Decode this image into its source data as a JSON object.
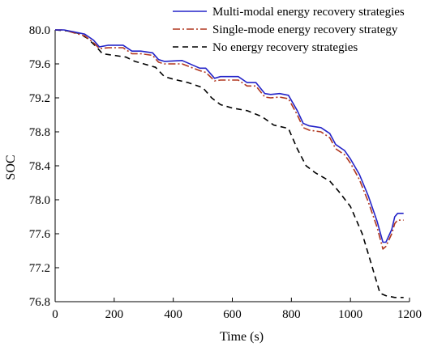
{
  "chart_data": {
    "type": "line",
    "xlabel": "Time (s)",
    "ylabel": "SOC",
    "xlim": [
      0,
      1200
    ],
    "ylim": [
      76.8,
      80.0
    ],
    "xticks": [
      0,
      200,
      400,
      600,
      800,
      1000,
      1200
    ],
    "yticks": [
      76.8,
      77.2,
      77.6,
      78.0,
      78.4,
      78.8,
      79.2,
      79.6,
      80.0
    ],
    "ytick_labels": [
      "76.8",
      "77.2",
      "77.6",
      "78.0",
      "78.4",
      "78.8",
      "79.2",
      "79.6",
      "80.0"
    ],
    "grid": false,
    "legend_position": "top-right",
    "series": [
      {
        "name": "Multi-modal energy recovery strategies",
        "color": "#2323c8",
        "style": "solid",
        "x": [
          0,
          30,
          60,
          100,
          130,
          150,
          180,
          230,
          260,
          290,
          330,
          350,
          370,
          430,
          490,
          510,
          540,
          560,
          620,
          650,
          680,
          710,
          730,
          760,
          790,
          820,
          840,
          860,
          900,
          930,
          950,
          980,
          1000,
          1030,
          1060,
          1090,
          1110,
          1120,
          1140,
          1150,
          1160,
          1180
        ],
        "values": [
          80.0,
          80.0,
          79.98,
          79.95,
          79.88,
          79.8,
          79.82,
          79.82,
          79.75,
          79.75,
          79.73,
          79.65,
          79.63,
          79.64,
          79.55,
          79.55,
          79.43,
          79.45,
          79.45,
          79.38,
          79.38,
          79.25,
          79.24,
          79.25,
          79.23,
          79.05,
          78.9,
          78.87,
          78.85,
          78.78,
          78.65,
          78.58,
          78.48,
          78.3,
          78.05,
          77.75,
          77.5,
          77.5,
          77.65,
          77.8,
          77.84,
          77.84
        ]
      },
      {
        "name": "Single-mode energy recovery strategy",
        "color": "#b0361e",
        "style": "dashdot",
        "x": [
          0,
          30,
          60,
          100,
          130,
          150,
          180,
          230,
          260,
          290,
          330,
          350,
          370,
          430,
          490,
          510,
          540,
          560,
          620,
          650,
          680,
          710,
          730,
          760,
          790,
          820,
          840,
          860,
          900,
          930,
          950,
          980,
          1000,
          1030,
          1060,
          1090,
          1110,
          1120,
          1140,
          1150,
          1160,
          1180
        ],
        "values": [
          80.0,
          80.0,
          79.97,
          79.93,
          79.85,
          79.78,
          79.79,
          79.79,
          79.72,
          79.72,
          79.7,
          79.62,
          79.6,
          79.6,
          79.52,
          79.5,
          79.4,
          79.41,
          79.41,
          79.34,
          79.34,
          79.21,
          79.2,
          79.21,
          79.19,
          79.0,
          78.85,
          78.82,
          78.8,
          78.73,
          78.6,
          78.53,
          78.43,
          78.24,
          77.98,
          77.68,
          77.42,
          77.45,
          77.6,
          77.72,
          77.76,
          77.76
        ]
      },
      {
        "name": "No energy recovery strategies",
        "color": "#000000",
        "style": "dashed",
        "x": [
          0,
          40,
          80,
          110,
          140,
          160,
          200,
          240,
          270,
          300,
          340,
          370,
          400,
          450,
          500,
          530,
          560,
          600,
          650,
          700,
          740,
          790,
          820,
          850,
          880,
          930,
          960,
          1000,
          1040,
          1070,
          1100,
          1120,
          1150,
          1180
        ],
        "values": [
          80.0,
          79.99,
          79.96,
          79.9,
          79.8,
          79.72,
          79.7,
          79.68,
          79.63,
          79.6,
          79.56,
          79.45,
          79.42,
          79.38,
          79.32,
          79.2,
          79.12,
          79.08,
          79.05,
          78.98,
          78.88,
          78.84,
          78.6,
          78.4,
          78.32,
          78.22,
          78.1,
          77.92,
          77.6,
          77.25,
          76.9,
          76.87,
          76.85,
          76.85
        ]
      }
    ]
  }
}
